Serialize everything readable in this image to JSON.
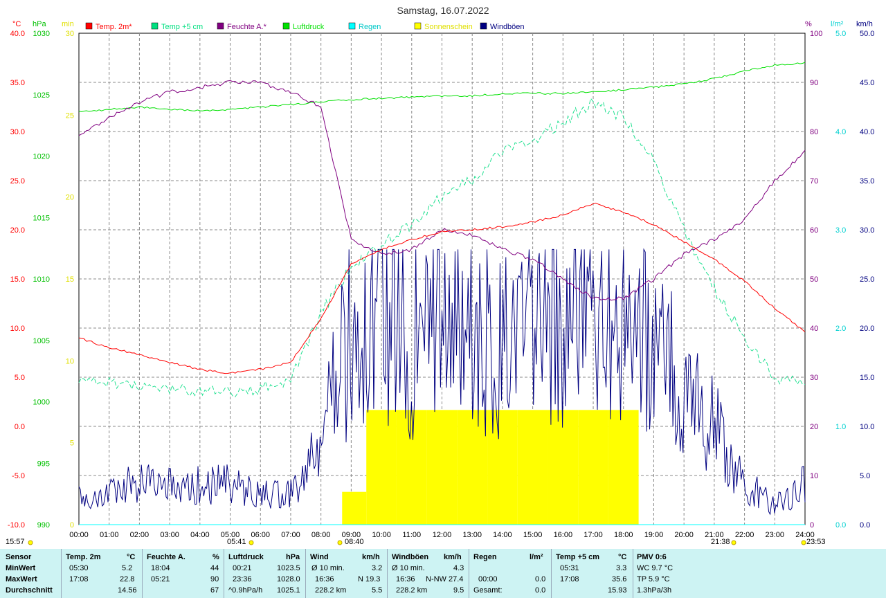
{
  "title": "Samstag, 16.07.2022",
  "legend": [
    {
      "label": "Temp. 2m*",
      "color": "#ff0000"
    },
    {
      "label": "Temp +5 cm",
      "color": "#00e080"
    },
    {
      "label": "Feuchte A.*",
      "color": "#800080"
    },
    {
      "label": "Luftdruck",
      "color": "#00e000"
    },
    {
      "label": "Regen",
      "color": "#00ffff"
    },
    {
      "label": "Sonnenschein",
      "color": "#ffff00"
    },
    {
      "label": "Windböen",
      "color": "#000080"
    }
  ],
  "axes": {
    "temp_unit": "°C",
    "hpa_unit": "hPa",
    "min_unit": "min",
    "pct_unit": "%",
    "rain_unit": "l/m²",
    "kmh_unit": "km/h",
    "temp_ticks": [
      "40.0",
      "35.0",
      "30.0",
      "25.0",
      "20.0",
      "15.0",
      "10.0",
      "5.0",
      "0.0",
      "-5.0",
      "-10.0"
    ],
    "hpa_ticks": [
      "1030",
      "1025",
      "1020",
      "1015",
      "1010",
      "1005",
      "1000",
      "995",
      "990"
    ],
    "min_ticks": [
      "30",
      "25",
      "20",
      "15",
      "10",
      "5",
      "0"
    ],
    "pct_ticks": [
      "100",
      "90",
      "80",
      "70",
      "60",
      "50",
      "40",
      "30",
      "20",
      "10",
      "0"
    ],
    "rain_ticks": [
      "5.0",
      "4.0",
      "3.0",
      "2.0",
      "1.0",
      "0.0"
    ],
    "kmh_ticks": [
      "50.0",
      "45.0",
      "40.0",
      "35.0",
      "30.0",
      "25.0",
      "20.0",
      "15.0",
      "10.0",
      "5.0",
      "0.0"
    ],
    "time_ticks": [
      "00:00",
      "01:00",
      "02:00",
      "03:00",
      "04:00",
      "05:00",
      "06:00",
      "07:00",
      "08:00",
      "09:00",
      "10:00",
      "11:00",
      "12:00",
      "13:00",
      "14:00",
      "15:00",
      "16:00",
      "17:00",
      "18:00",
      "19:00",
      "20:00",
      "21:00",
      "22:00",
      "23:00",
      "24:00"
    ]
  },
  "markers": {
    "sunrise_prev": "15:57",
    "t1": "05:41",
    "t2": "08:40",
    "t3": "21:38",
    "t4": "23:53"
  },
  "chart_data": {
    "type": "line",
    "title": "Samstag, 16.07.2022",
    "x_range": [
      "00:00",
      "24:00"
    ],
    "grid": true,
    "legend_position": "top",
    "series": [
      {
        "name": "Temp. 2m*",
        "unit": "°C",
        "x": [
          0,
          1,
          2,
          3,
          4,
          5,
          6,
          7,
          8,
          9,
          10,
          11,
          12,
          13,
          14,
          15,
          16,
          17,
          18,
          19,
          20,
          21,
          22,
          23,
          24
        ],
        "values": [
          9.0,
          8.0,
          7.3,
          6.5,
          5.8,
          5.4,
          5.8,
          6.5,
          11.0,
          16.5,
          18.0,
          19.0,
          19.8,
          20.0,
          20.3,
          20.8,
          21.5,
          22.7,
          21.8,
          20.5,
          18.8,
          17.0,
          14.8,
          12.0,
          9.6
        ]
      },
      {
        "name": "Temp +5 cm",
        "unit": "°C",
        "x": [
          0,
          1,
          2,
          3,
          4,
          5,
          6,
          7,
          8,
          9,
          10,
          11,
          12,
          13,
          14,
          15,
          16,
          17,
          18,
          19,
          20,
          21,
          22,
          23,
          24
        ],
        "values": [
          5.0,
          4.5,
          4.0,
          3.8,
          3.6,
          3.5,
          3.8,
          4.8,
          11.5,
          16.3,
          18.5,
          20.5,
          23.5,
          25.0,
          28.0,
          29.0,
          31.0,
          33.0,
          31.5,
          27.0,
          20.0,
          14.0,
          9.0,
          5.0,
          4.5
        ]
      },
      {
        "name": "Feuchte A.*",
        "unit": "%",
        "x": [
          0,
          1,
          2,
          3,
          4,
          5,
          6,
          7,
          8,
          9,
          10,
          11,
          12,
          13,
          14,
          15,
          16,
          17,
          18,
          19,
          20,
          21,
          22,
          23,
          24
        ],
        "values": [
          79,
          83,
          86,
          88,
          89,
          90,
          90,
          88,
          85,
          58,
          55,
          56,
          60,
          59,
          56,
          54,
          50,
          46,
          46,
          50,
          55,
          58,
          62,
          70,
          76
        ]
      },
      {
        "name": "Luftdruck",
        "unit": "hPa",
        "x": [
          0,
          1,
          2,
          3,
          4,
          5,
          6,
          7,
          8,
          9,
          10,
          11,
          12,
          13,
          14,
          15,
          16,
          17,
          18,
          19,
          20,
          21,
          22,
          23,
          24
        ],
        "values": [
          1023.6,
          1023.8,
          1024.0,
          1023.8,
          1023.7,
          1023.8,
          1024.0,
          1024.2,
          1024.4,
          1024.6,
          1024.7,
          1024.8,
          1024.9,
          1024.9,
          1025.1,
          1025.1,
          1025.1,
          1025.2,
          1025.4,
          1025.6,
          1025.9,
          1026.3,
          1026.9,
          1027.4,
          1027.6
        ]
      },
      {
        "name": "Windböen",
        "unit": "km/h",
        "x": [
          0,
          1,
          2,
          3,
          4,
          5,
          6,
          7,
          8,
          9,
          10,
          11,
          12,
          13,
          14,
          15,
          16,
          17,
          18,
          19,
          20,
          21,
          22,
          23,
          24
        ],
        "values": [
          3,
          3,
          5,
          4,
          4,
          4,
          3,
          3,
          8,
          20,
          22,
          18,
          22,
          20,
          18,
          20,
          21,
          22,
          20,
          18,
          14,
          10,
          4,
          2,
          4
        ]
      },
      {
        "name": "Sonnenschein",
        "unit": "min",
        "x": [
          9,
          10,
          11,
          12,
          13,
          14,
          15,
          16,
          17,
          18
        ],
        "values": [
          2,
          7,
          7,
          7,
          7,
          7,
          7,
          7,
          7,
          7
        ]
      },
      {
        "name": "Regen",
        "unit": "l/m²",
        "x": [
          0,
          24
        ],
        "values": [
          0.0,
          0.0
        ]
      }
    ]
  },
  "stats": {
    "row_labels": [
      "Sensor",
      "MinWert",
      "MaxWert",
      "Durchschnitt"
    ],
    "temp2m": {
      "header": "Temp. 2m",
      "unit": "°C",
      "min_time": "05:30",
      "min": "5.2",
      "max_time": "17:08",
      "max": "22.8",
      "avg": "14.56"
    },
    "feuchte": {
      "header": "Feuchte A.",
      "unit": "%",
      "min_time": "18:04",
      "min": "44",
      "max_time": "05:21",
      "max": "90",
      "avg": "67"
    },
    "luftdruck": {
      "header": "Luftdruck",
      "unit": "hPa",
      "min_time": "00:21",
      "min": "1023.5",
      "max_time": "23:36",
      "max": "1028.0",
      "trend": "^0.9hPa/h",
      "avg": "1025.1"
    },
    "wind": {
      "header": "Wind",
      "unit": "km/h",
      "r1a": "Ø 10 min.",
      "r1b": "3.2",
      "r2a": "16:36",
      "r2b": "N 19.3",
      "r3a": "228.2 km",
      "r3b": "5.5"
    },
    "windboen": {
      "header": "Windböen",
      "unit": "km/h",
      "r1a": "Ø 10 min.",
      "r1b": "4.3",
      "r2a": "16:36",
      "r2b": "N-NW 27.4",
      "r3a": "228.2 km",
      "r3b": "9.5"
    },
    "regen": {
      "header": "Regen",
      "unit": "l/m²",
      "r2a": "00:00",
      "r2b": "0.0",
      "r3a": "Gesamt:",
      "r3b": "0.0"
    },
    "temp5": {
      "header": "Temp +5 cm",
      "unit": "°C",
      "min_time": "05:31",
      "min": "3.3",
      "max_time": "17:08",
      "max": "35.6",
      "avg": "15.93"
    },
    "pmv": {
      "header": "PMV 0:6",
      "r1": "WC 9.7 °C",
      "r2": "TP 5.9 °C",
      "r3": "1.3hPa/3h"
    }
  }
}
